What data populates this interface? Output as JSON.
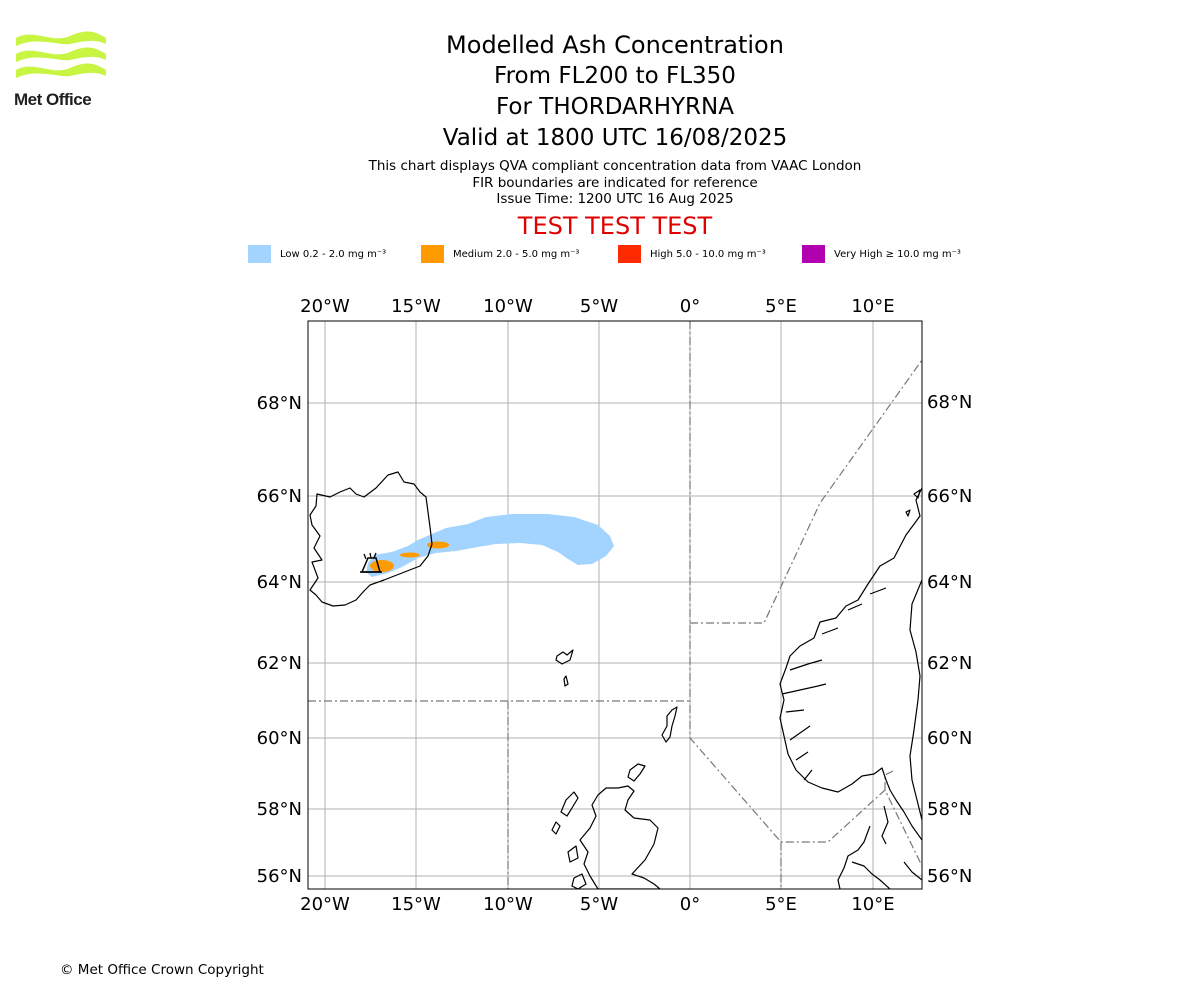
{
  "logo": {
    "text": "Met Office"
  },
  "title": {
    "line1": "Modelled Ash Concentration",
    "line2": "From FL200 to FL350",
    "line3": "For THORDARHYRNA",
    "line4": "Valid at 1800 UTC 16/08/2025"
  },
  "info": {
    "line1": "This chart displays QVA compliant concentration data from VAAC London",
    "line2": "FIR boundaries are indicated for reference",
    "line3": "Issue Time: 1200 UTC 16 Aug 2025"
  },
  "banner": "TEST TEST TEST",
  "legend": [
    {
      "label": "Low 0.2 - 2.0 mg m⁻³",
      "color": "#a3d3ff"
    },
    {
      "label": "Medium 2.0 - 5.0 mg m⁻³",
      "color": "#ff9a00"
    },
    {
      "label": "High 5.0 - 10.0 mg m⁻³",
      "color": "#ff2a00"
    },
    {
      "label": "Very High  ≥  10.0 mg m⁻³",
      "color": "#b000b0"
    }
  ],
  "map": {
    "lon_ticks": [
      "20°W",
      "15°W",
      "10°W",
      "5°W",
      "0°",
      "5°E",
      "10°E"
    ],
    "lat_ticks": [
      "68°N",
      "66°N",
      "64°N",
      "62°N",
      "60°N",
      "58°N",
      "56°N"
    ],
    "volcano_icon": "volcano-icon",
    "colors": {
      "grid": "#b0b0b0",
      "coast": "#000000",
      "fir": "#777777"
    }
  },
  "copyright": "© Met Office Crown Copyright"
}
